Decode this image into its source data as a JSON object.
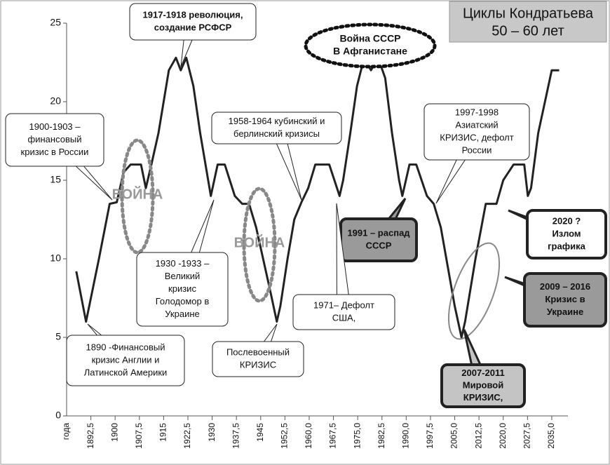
{
  "chart_data": {
    "type": "line",
    "title": [
      "Циклы Кондратьева",
      "50 – 60 лет"
    ],
    "x_label": "года",
    "x": [
      1888,
      1891,
      1895,
      1898.3,
      1900.5,
      1902.6,
      1904.8,
      1908,
      1909.5,
      1911.2,
      1913.4,
      1916.6,
      1918.8,
      1920.3,
      1922,
      1924.2,
      1926.3,
      1929.6,
      1931.7,
      1933.9,
      1937,
      1939.3,
      1941.4,
      1943.6,
      1947.9,
      1950,
      1951.1,
      1953.3,
      1955.4,
      1957.6,
      1959.7,
      1961.9,
      1966.2,
      1969.4,
      1970.5,
      1972.7,
      1974.8,
      1977,
      1979.1,
      1981.3,
      1983.5,
      1985.6,
      1987.8,
      1988.8,
      1991,
      1993.1,
      1996.4,
      1998.5,
      2000.7,
      2005,
      2007.1,
      2008.2,
      2011.4,
      2014.6,
      2017.9,
      2020,
      2023.2,
      2026.5,
      2027.6,
      2028.6,
      2030.8,
      2035,
      2037.3
    ],
    "values": [
      9.2,
      6,
      10,
      13.5,
      13.6,
      15.5,
      16,
      16,
      14.5,
      16,
      18,
      22,
      22.8,
      22,
      22.8,
      21,
      18,
      14,
      16,
      16,
      14,
      13.5,
      13.5,
      12,
      8,
      6,
      7,
      10,
      12.5,
      13.6,
      14.5,
      16,
      16,
      14,
      15,
      18,
      21,
      22.8,
      22,
      22.8,
      21.5,
      18,
      15,
      14,
      16,
      16,
      14,
      13.5,
      12,
      7,
      5,
      6,
      10,
      13.5,
      13.5,
      15,
      16,
      16,
      14,
      14.5,
      18,
      22,
      22
    ],
    "color": "#222222",
    "xlim": [
      1885,
      2040
    ],
    "xticks": [
      {
        "value": 1892.5,
        "label": "1892,5"
      },
      1900,
      {
        "value": 1907.5,
        "label": "1907,5"
      },
      1915,
      {
        "value": 1922.5,
        "label": "1922,5"
      },
      1930,
      {
        "value": 1937.5,
        "label": "1937,5"
      },
      1945,
      {
        "value": 1952.5,
        "label": "1952,5"
      },
      {
        "value": 1960,
        "label": "1960,0"
      },
      {
        "value": 1967.5,
        "label": "1967,5"
      },
      {
        "value": 1975,
        "label": "1975,0"
      },
      {
        "value": 1982.5,
        "label": "1982,5"
      },
      {
        "value": 1990,
        "label": "1990,0"
      },
      {
        "value": 1997.5,
        "label": "1997,5"
      },
      {
        "value": 2005,
        "label": "2005,0"
      },
      {
        "value": 2012.5,
        "label": "2012,5"
      },
      {
        "value": 2020,
        "label": "2020,0"
      },
      {
        "value": 2027.5,
        "label": "2027,5"
      },
      {
        "value": 2035,
        "label": "2035,0"
      }
    ],
    "ylim": [
      0,
      25
    ],
    "yticks": [
      0,
      5,
      10,
      15,
      20,
      25
    ],
    "grid": false,
    "annotations": [
      {
        "lines": [
          "1917-1918 революция,",
          "создание РСФСР"
        ]
      },
      {
        "lines": [
          "Война СССР",
          "В Афганистане"
        ]
      },
      {
        "lines": [
          "1900-1903 –",
          "финансовый",
          "кризис в России"
        ]
      },
      {
        "lines": [
          "ВОЙНА"
        ]
      },
      {
        "lines": [
          "ВОЙНА"
        ]
      },
      {
        "lines": [
          "1958-1964 кубинский и",
          "берлинский  кризисы"
        ]
      },
      {
        "lines": [
          "1997-1998",
          "Азиатский",
          "КРИЗИС, дефолт",
          "России"
        ]
      },
      {
        "lines": [
          "2020 ?",
          "Излом",
          "графика"
        ]
      },
      {
        "lines": [
          "1991 – распад",
          "СССР"
        ]
      },
      {
        "lines": [
          "1930 -1933 –",
          "Великий",
          "кризис",
          "Голодомор в",
          "Украине"
        ]
      },
      {
        "lines": [
          "1971– Дефолт",
          "США,"
        ]
      },
      {
        "lines": [
          "2009 – 2016",
          "Кризис в",
          "Украине"
        ]
      },
      {
        "lines": [
          "1890 -Финансовый",
          "кризис Англии и",
          "Латинской Америки"
        ]
      },
      {
        "lines": [
          "Послевоенный",
          "КРИЗИС"
        ]
      },
      {
        "lines": [
          "2007-2011",
          "Мировой",
          "КРИЗИС,"
        ]
      }
    ]
  }
}
